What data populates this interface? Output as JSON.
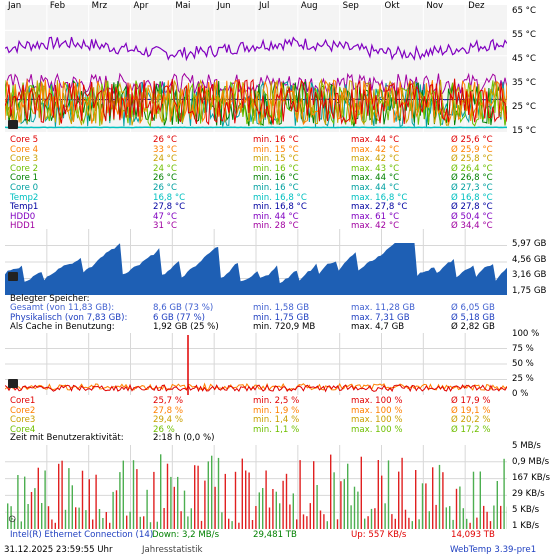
{
  "months": [
    "Jan",
    "Feb",
    "Mrz",
    "Apr",
    "Mai",
    "Jun",
    "Jul",
    "Aug",
    "Sep",
    "Okt",
    "Nov",
    "Dez"
  ],
  "colors": {
    "core5": "#e00000",
    "core4": "#ff7f00",
    "core3": "#c8a000",
    "core2": "#6fbf00",
    "core1": "#008000",
    "core0": "#00a0a0",
    "temp2": "#00c0c0",
    "temp1": "#0000a0",
    "hdd0": "#8000c0",
    "hdd1": "#a000a0",
    "mem_fill": "#1e5fb4",
    "cpu_red": "#e00000",
    "cpu_orange": "#ff7f00",
    "net_green": "#4caf50",
    "net_red": "#e02020",
    "label_blue": "#2040c0"
  },
  "temp_panel": {
    "y_axis": [
      "65 °C",
      "55 °C",
      "45 °C",
      "35 °C",
      "25 °C",
      "15 °C"
    ],
    "rows": [
      {
        "name": "Core 5",
        "cur": "26 °C",
        "min": "min. 16 °C",
        "max": "max. 44 °C",
        "avg": "Ø 25,6 °C",
        "color": "#e00000"
      },
      {
        "name": "Core 4",
        "cur": "33 °C",
        "min": "min. 15 °C",
        "max": "max. 42 °C",
        "avg": "Ø 25,9 °C",
        "color": "#ff7f00"
      },
      {
        "name": "Core 3",
        "cur": "24 °C",
        "min": "min. 15 °C",
        "max": "max. 42 °C",
        "avg": "Ø 25,8 °C",
        "color": "#c8a000"
      },
      {
        "name": "Core 2",
        "cur": "24 °C",
        "min": "min. 16 °C",
        "max": "max. 43 °C",
        "avg": "Ø 26,4 °C",
        "color": "#6fbf00"
      },
      {
        "name": "Core 1",
        "cur": "26 °C",
        "min": "min. 16 °C",
        "max": "max. 44 °C",
        "avg": "Ø 26,8 °C",
        "color": "#008000"
      },
      {
        "name": "Core 0",
        "cur": "26 °C",
        "min": "min. 16 °C",
        "max": "max. 44 °C",
        "avg": "Ø 27,3 °C",
        "color": "#00a0a0"
      },
      {
        "name": "Temp2",
        "cur": "16,8 °C",
        "min": "min. 16,8 °C",
        "max": "max. 16,8 °C",
        "avg": "Ø 16,8 °C",
        "color": "#00c0c0"
      },
      {
        "name": "Temp1",
        "cur": "27,8 °C",
        "min": "min. 16,8 °C",
        "max": "max. 27,8 °C",
        "avg": "Ø 27,8 °C",
        "color": "#0000a0"
      },
      {
        "name": "HDD0",
        "cur": "47 °C",
        "min": "min. 44 °C",
        "max": "max. 61 °C",
        "avg": "Ø 50,4 °C",
        "color": "#8000c0"
      },
      {
        "name": "HDD1",
        "cur": "31 °C",
        "min": "min. 28 °C",
        "max": "max. 42 °C",
        "avg": "Ø 34,4 °C",
        "color": "#a000a0"
      }
    ]
  },
  "mem_panel": {
    "y_axis": [
      "5,97 GB",
      "4,56 GB",
      "3,16 GB",
      "1,75 GB"
    ],
    "title": "Belegter Speicher:",
    "rows": [
      {
        "name": "Gesamt (von 11,83 GB):",
        "cur": "8,6 GB (73 %)",
        "min": "min. 1,58 GB",
        "max": "max. 11,28 GB",
        "avg": "Ø 6,05 GB",
        "color": "#4060d0"
      },
      {
        "name": "Physikalisch (von 7,83 GB):",
        "cur": "6 GB (77 %)",
        "min": "min. 1,75 GB",
        "max": "max. 7,31 GB",
        "avg": "Ø 5,18 GB",
        "color": "#2040c0"
      },
      {
        "name": "Als Cache in Benutzung:",
        "cur": "1,92 GB (25 %)",
        "min": "min. 720,9 MB",
        "max": "max. 4,7 GB",
        "avg": "Ø 2,82 GB",
        "color": "#000000"
      }
    ]
  },
  "cpu_panel": {
    "y_axis": [
      "100 %",
      "75 %",
      "50 %",
      "25 %",
      "0 %"
    ],
    "rows": [
      {
        "name": "Core1",
        "cur": "25,7 %",
        "min": "min. 2,5 %",
        "max": "max. 100 %",
        "avg": "Ø 17,9 %",
        "color": "#e00000"
      },
      {
        "name": "Core2",
        "cur": "27,8 %",
        "min": "min. 1,9 %",
        "max": "max. 100 %",
        "avg": "Ø 19,1 %",
        "color": "#ff7f00"
      },
      {
        "name": "Core3",
        "cur": "29,4 %",
        "min": "min. 1,4 %",
        "max": "max. 100 %",
        "avg": "Ø 20,2 %",
        "color": "#c8a000"
      },
      {
        "name": "Core4",
        "cur": "26 %",
        "min": "min. 1,1 %",
        "max": "max. 100 %",
        "avg": "Ø 17,2 %",
        "color": "#6fbf00"
      }
    ],
    "activity_label": "Zeit mit Benutzeraktivität:",
    "activity_value": "2:18 h (0,0 %)"
  },
  "net_panel": {
    "y_axis": [
      "5 MB/s",
      "0,9 MB/s",
      "167 KB/s",
      "29 KB/s",
      "5 KB/s",
      "1 KB/s"
    ],
    "adapter": "Intel(R) Ethernet Connection (14)",
    "down": "Down: 3,2 MB/s",
    "down_total": "29,481 TB",
    "up": "Up: 557 KB/s",
    "up_total": "14,093 TB"
  },
  "footer": {
    "datetime": "31.12.2025 23:59:55 Uhr",
    "label": "Jahresstatistik",
    "app": "WebTemp 3.39-pre1"
  }
}
